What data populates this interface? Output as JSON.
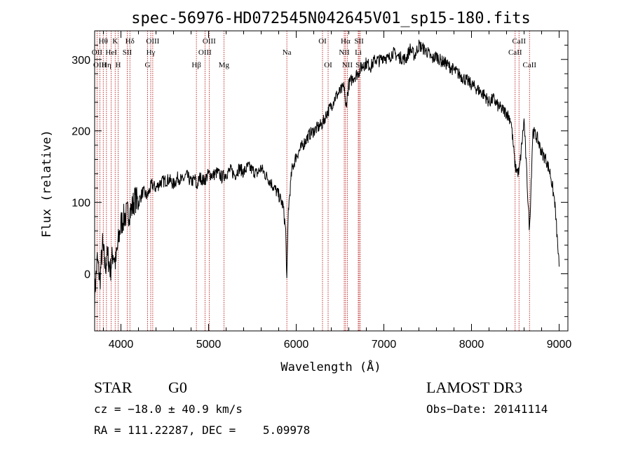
{
  "chart_data": {
    "type": "line",
    "title": "spec-56976-HD072545N042645V01_sp15-180.fits",
    "xlabel": "Wavelength (Å)",
    "ylabel": "Flux (relative)",
    "xlim": [
      3700,
      9100
    ],
    "ylim": [
      -80,
      340
    ],
    "xticks": [
      4000,
      5000,
      6000,
      7000,
      8000,
      9000
    ],
    "yticks": [
      0,
      100,
      200,
      300
    ],
    "series": [
      {
        "name": "flux",
        "x": [
          3700,
          3730,
          3760,
          3790,
          3820,
          3850,
          3880,
          3910,
          3940,
          3970,
          4000,
          4040,
          4080,
          4120,
          4160,
          4200,
          4250,
          4300,
          4350,
          4400,
          4450,
          4500,
          4550,
          4600,
          4650,
          4700,
          4750,
          4800,
          4850,
          4860,
          4900,
          4950,
          5000,
          5050,
          5100,
          5150,
          5200,
          5250,
          5300,
          5350,
          5400,
          5450,
          5500,
          5550,
          5600,
          5650,
          5700,
          5750,
          5800,
          5850,
          5880,
          5893,
          5910,
          5950,
          6000,
          6050,
          6100,
          6150,
          6200,
          6250,
          6300,
          6350,
          6400,
          6450,
          6500,
          6550,
          6563,
          6600,
          6650,
          6700,
          6750,
          6800,
          6850,
          6900,
          6950,
          7000,
          7050,
          7100,
          7150,
          7200,
          7250,
          7300,
          7350,
          7400,
          7450,
          7500,
          7550,
          7600,
          7650,
          7700,
          7750,
          7800,
          7850,
          7900,
          7950,
          8000,
          8050,
          8100,
          8150,
          8200,
          8250,
          8300,
          8350,
          8400,
          8450,
          8498,
          8542,
          8600,
          8662,
          8700,
          8750,
          8800,
          8850,
          8900,
          8950,
          9000
        ],
        "y": [
          -30,
          20,
          -10,
          40,
          10,
          25,
          5,
          30,
          15,
          45,
          70,
          80,
          85,
          90,
          105,
          100,
          115,
          108,
          125,
          120,
          128,
          130,
          132,
          125,
          135,
          130,
          138,
          128,
          133,
          120,
          135,
          130,
          140,
          138,
          142,
          135,
          140,
          145,
          138,
          148,
          142,
          150,
          145,
          140,
          148,
          138,
          130,
          120,
          110,
          95,
          60,
          -10,
          90,
          145,
          165,
          175,
          185,
          195,
          200,
          205,
          210,
          225,
          235,
          248,
          255,
          262,
          230,
          265,
          275,
          280,
          290,
          295,
          290,
          300,
          298,
          305,
          300,
          310,
          305,
          302,
          300,
          315,
          305,
          320,
          315,
          310,
          300,
          305,
          298,
          295,
          290,
          285,
          280,
          275,
          270,
          265,
          260,
          255,
          250,
          240,
          245,
          235,
          230,
          225,
          215,
          150,
          140,
          215,
          60,
          200,
          190,
          170,
          160,
          140,
          100,
          10
        ]
      }
    ],
    "lines": [
      {
        "label": "Hθ",
        "x": 3798,
        "row": 1
      },
      {
        "label": "OII",
        "x": 3727,
        "row": 2
      },
      {
        "label": "OIII",
        "x": 3760,
        "row": 3
      },
      {
        "label": "Hη",
        "x": 3835,
        "row": 3
      },
      {
        "label": "HeI",
        "x": 3889,
        "row": 2
      },
      {
        "label": "K",
        "x": 3934,
        "row": 1
      },
      {
        "label": "H",
        "x": 3968,
        "row": 3
      },
      {
        "label": "SII",
        "x": 4072,
        "row": 2
      },
      {
        "label": "Hδ",
        "x": 4102,
        "row": 1
      },
      {
        "label": "OIII",
        "x": 4363,
        "row": 1
      },
      {
        "label": "Hγ",
        "x": 4340,
        "row": 2
      },
      {
        "label": "G",
        "x": 4304,
        "row": 3
      },
      {
        "label": "Hβ",
        "x": 4861,
        "row": 3
      },
      {
        "label": "OIII",
        "x": 5007,
        "row": 1
      },
      {
        "label": "OIII",
        "x": 4959,
        "row": 2
      },
      {
        "label": "Mg",
        "x": 5175,
        "row": 3
      },
      {
        "label": "Na",
        "x": 5893,
        "row": 2
      },
      {
        "label": "OI",
        "x": 6300,
        "row": 1
      },
      {
        "label": "OI",
        "x": 6364,
        "row": 3
      },
      {
        "label": "Hα",
        "x": 6563,
        "row": 1
      },
      {
        "label": "SII",
        "x": 6717,
        "row": 1
      },
      {
        "label": "NII",
        "x": 6548,
        "row": 2
      },
      {
        "label": "Li",
        "x": 6708,
        "row": 2
      },
      {
        "label": "NII",
        "x": 6583,
        "row": 3
      },
      {
        "label": "SII",
        "x": 6731,
        "row": 3
      },
      {
        "label": "CaII",
        "x": 8542,
        "row": 1
      },
      {
        "label": "CaII",
        "x": 8498,
        "row": 2
      },
      {
        "label": "CaII",
        "x": 8662,
        "row": 3
      }
    ]
  },
  "info": {
    "class": "STAR",
    "subclass": "G0",
    "survey": "LAMOST DR3",
    "cz": "cz = −18.0 ± 40.9 km/s",
    "obs_date": "Obs−Date: 20141114",
    "radec": "RA = 111.22287, DEC =    5.09978"
  },
  "colors": {
    "line": "#000000",
    "marker": "#b00000"
  }
}
